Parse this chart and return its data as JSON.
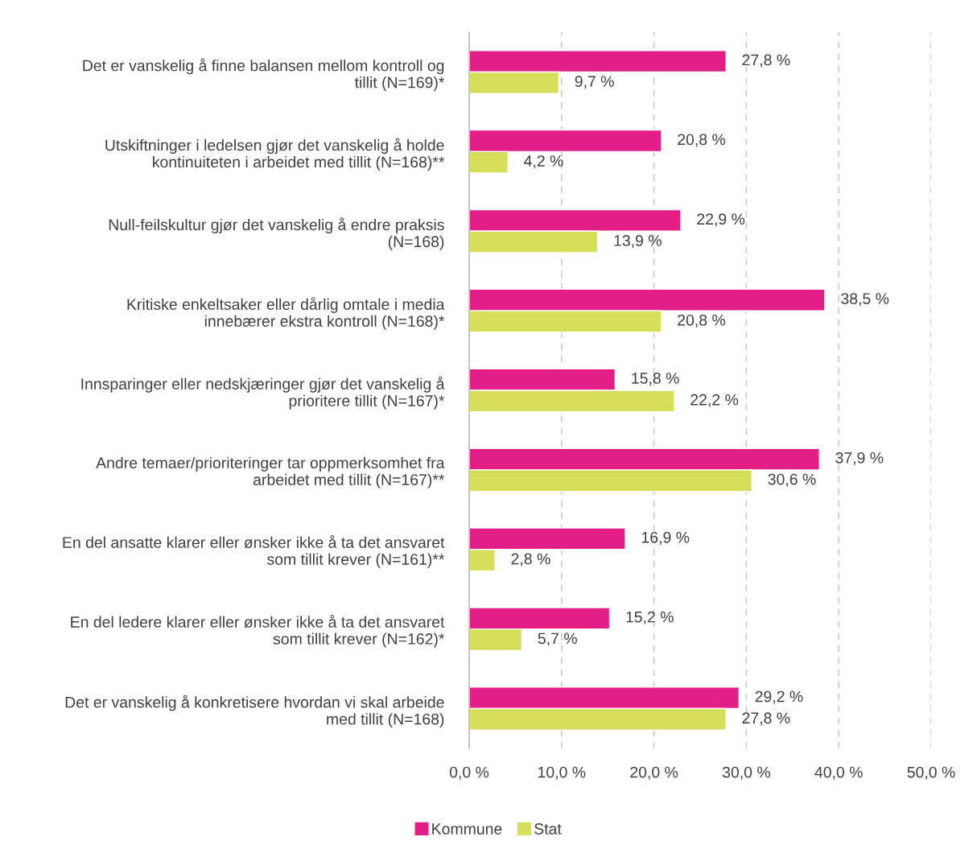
{
  "chart_data": {
    "type": "bar",
    "orientation": "horizontal",
    "categories": [
      "Det er vanskelig å finne balansen mellom kontroll og\ntillit (N=169)*",
      "Utskiftninger i ledelsen gjør det vanskelig å holde\nkontinuiteten i arbeidet med tillit (N=168)**",
      "Null-feilskultur gjør det vanskelig å endre praksis\n(N=168)",
      "Kritiske enkeltsaker eller dårlig omtale i media\ninnebærer ekstra kontroll (N=168)*",
      "Innsparinger eller nedskjæringer gjør det vanskelig å\nprioritere tillit (N=167)*",
      "Andre temaer/prioriteringer tar oppmerksomhet fra\narbeidet med tillit (N=167)**",
      "En del ansatte klarer eller ønsker ikke å ta det ansvaret\nsom tillit krever (N=161)**",
      "En del ledere klarer eller ønsker ikke å ta det ansvaret\nsom tillit krever (N=162)*",
      "Det er vanskelig å konkretisere hvordan vi skal arbeide\nmed tillit (N=168)"
    ],
    "series": [
      {
        "name": "Kommune",
        "color": "#e31e87",
        "values": [
          27.8,
          20.8,
          22.9,
          38.5,
          15.8,
          37.9,
          16.9,
          15.2,
          29.2
        ],
        "value_labels": [
          "27,8 %",
          "20,8 %",
          "22,9 %",
          "38,5 %",
          "15,8 %",
          "37,9 %",
          "16,9 %",
          "15,2 %",
          "29,2 %"
        ]
      },
      {
        "name": "Stat",
        "color": "#d5df5a",
        "values": [
          9.7,
          4.2,
          13.9,
          20.8,
          22.2,
          30.6,
          2.8,
          5.7,
          27.8
        ],
        "value_labels": [
          "9,7 %",
          "4,2 %",
          "13,9 %",
          "20,8 %",
          "22,2 %",
          "30,6 %",
          "2,8 %",
          "5,7 %",
          "27,8 %"
        ]
      }
    ],
    "xlim": [
      0,
      50
    ],
    "xticks": [
      {
        "value": 0,
        "label": "0,0 %"
      },
      {
        "value": 10,
        "label": "10,0 %"
      },
      {
        "value": 20,
        "label": "20,0 %"
      },
      {
        "value": 30,
        "label": "30,0 %"
      },
      {
        "value": 40,
        "label": "40,0 %"
      },
      {
        "value": 50,
        "label": "50,0 %"
      }
    ],
    "grid": "x",
    "legend": "bottom"
  }
}
